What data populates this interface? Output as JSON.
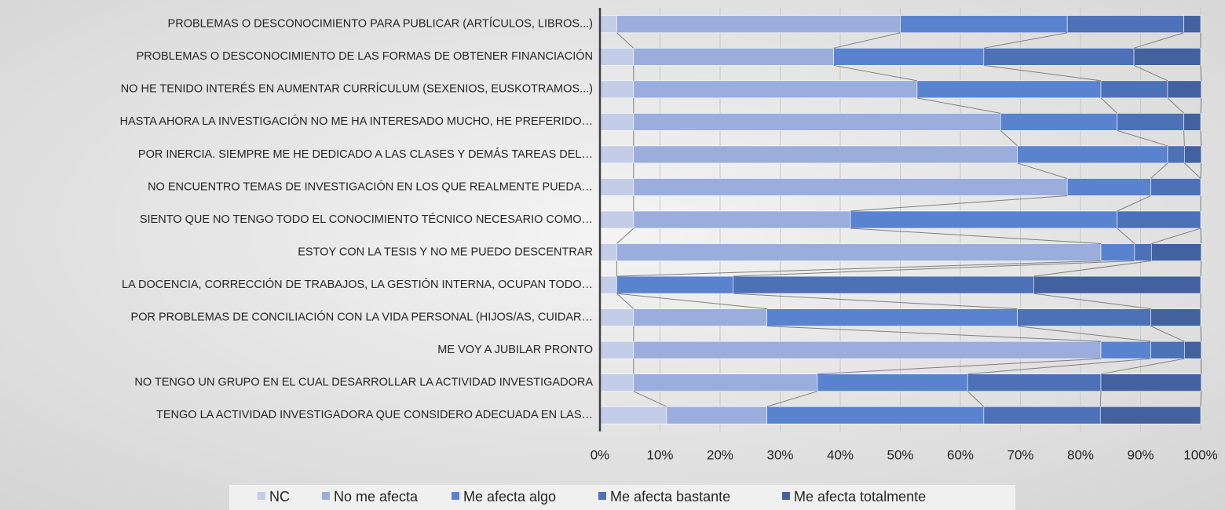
{
  "chart_data": {
    "type": "stacked_barh",
    "categories": [
      "PROBLEMAS O DESCONOCIMIENTO PARA PUBLICAR (ARTÍCULOS, LIBROS...)",
      "PROBLEMAS O DESCONOCIMIENTO DE LAS FORMAS DE OBTENER FINANCIACIÓN",
      "NO HE TENIDO INTERÉS EN AUMENTAR CURRÍCULUM (SEXENIOS, EUSKOTRAMOS...)",
      "HASTA AHORA LA INVESTIGACIÓN NO ME HA INTERESADO MUCHO, HE PREFERIDO…",
      "POR INERCIA. SIEMPRE ME HE DEDICADO A LAS CLASES Y DEMÁS TAREAS DEL…",
      "NO ENCUENTRO TEMAS DE INVESTIGACIÓN EN LOS QUE REALMENTE PUEDA…",
      "SIENTO QUE NO TENGO TODO EL CONOCIMIENTO TÉCNICO NECESARIO COMO…",
      "ESTOY CON LA TESIS Y NO ME PUEDO DESCENTRAR",
      "LA DOCENCIA, CORRECCIÓN DE TRABAJOS, LA GESTIÓN INTERNA, OCUPAN TODO…",
      "POR PROBLEMAS DE CONCILIACIÓN CON LA VIDA PERSONAL (HIJOS/AS, CUIDAR…",
      "ME VOY A JUBILAR PRONTO",
      "NO TENGO UN GRUPO EN EL CUAL DESARROLLAR LA ACTIVIDAD INVESTIGADORA",
      "TENGO LA ACTIVIDAD INVESTIGADORA QUE CONSIDERO ADECUADA EN LAS…"
    ],
    "series": [
      {
        "name": "NC",
        "color": "#c3cde8",
        "values": [
          2.8,
          5.6,
          5.6,
          5.6,
          5.6,
          5.6,
          5.6,
          2.8,
          2.8,
          5.6,
          5.6,
          5.6,
          11.1
        ]
      },
      {
        "name": "No me afecta",
        "color": "#9aaddc",
        "values": [
          47.2,
          33.3,
          47.2,
          61.1,
          63.9,
          72.2,
          36.1,
          80.6,
          0,
          22.2,
          77.8,
          30.6,
          16.7
        ]
      },
      {
        "name": "Me afecta algo",
        "color": "#5a83cf",
        "values": [
          27.8,
          25.0,
          30.6,
          19.4,
          25.0,
          13.9,
          44.4,
          5.6,
          19.4,
          41.7,
          8.3,
          25.0,
          36.1
        ]
      },
      {
        "name": "Me afecta bastante",
        "color": "#4d71b6",
        "values": [
          19.4,
          25.0,
          11.1,
          11.1,
          2.8,
          8.3,
          13.9,
          2.8,
          50.0,
          22.2,
          5.6,
          22.2,
          19.4
        ]
      },
      {
        "name": "Me afecta totalmente",
        "color": "#42619e",
        "values": [
          2.8,
          11.1,
          5.6,
          2.8,
          2.8,
          0,
          0,
          8.3,
          27.8,
          8.3,
          2.8,
          16.7,
          16.7
        ]
      }
    ],
    "xlim": [
      0,
      100
    ],
    "xticks": [
      {
        "value": 0,
        "label": "0%"
      },
      {
        "value": 10,
        "label": "10%"
      },
      {
        "value": 20,
        "label": "20%"
      },
      {
        "value": 30,
        "label": "30%"
      },
      {
        "value": 40,
        "label": "40%"
      },
      {
        "value": 50,
        "label": "50%"
      },
      {
        "value": 60,
        "label": "60%"
      },
      {
        "value": 70,
        "label": "70%"
      },
      {
        "value": 80,
        "label": "80%"
      },
      {
        "value": 90,
        "label": "90%"
      },
      {
        "value": 100,
        "label": "100%"
      }
    ],
    "grid": true,
    "legend": "bottom"
  }
}
